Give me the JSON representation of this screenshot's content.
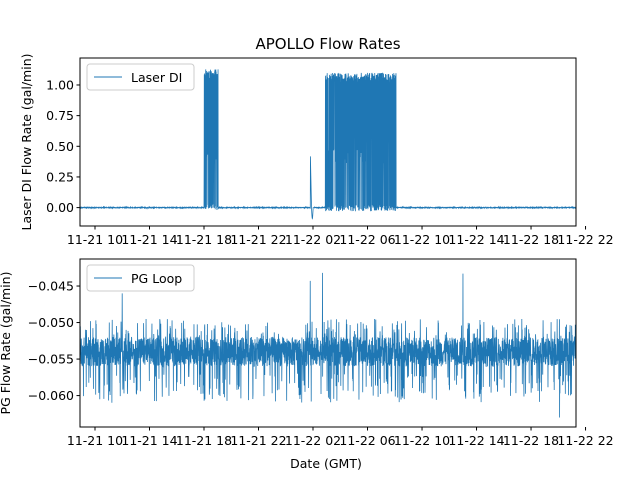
{
  "chart_data": {
    "type": "line",
    "title": "APOLLO Flow Rates",
    "xlabel": "Date (GMT)",
    "x_tick_labels": [
      "11-21 10",
      "11-21 14",
      "11-21 18",
      "11-21 22",
      "11-22 02",
      "11-22 06",
      "11-22 10",
      "11-22 14",
      "11-22 18",
      "11-22 22"
    ],
    "x_tick_hours": [
      -0.5,
      3.5,
      7.5,
      11.5,
      15.5,
      19.5,
      23.5,
      27.5,
      31.5,
      35.5
    ],
    "xlim_hours": [
      -1.6,
      34.8
    ],
    "x_origin": "11-21 10:30 GMT",
    "panels": [
      {
        "id": "top",
        "series_name": "Laser DI",
        "ylabel": "Laser DI Flow Rate (gal/min)",
        "ylim": [
          -0.15,
          1.22
        ],
        "yticks": [
          0.0,
          0.25,
          0.5,
          0.75,
          1.0
        ],
        "ytick_labels": [
          "0.00",
          "0.25",
          "0.50",
          "0.75",
          "1.00"
        ],
        "legend_loc": "upper left",
        "baseline": 0.0,
        "features": [
          {
            "start": 7.5,
            "end": 8.55,
            "low": -0.02,
            "high": 1.13,
            "note": "first burst"
          },
          {
            "start": 15.3,
            "end": 15.6,
            "low": -0.09,
            "high": 0.47,
            "note": "small spike and dip"
          },
          {
            "start": 16.4,
            "end": 21.6,
            "low": -0.03,
            "high": 1.1,
            "note": "main pumping period"
          }
        ]
      },
      {
        "id": "bottom",
        "series_name": "PG Loop",
        "ylabel": "PG Flow Rate (gal/min)",
        "ylim": [
          -0.0643,
          -0.0413
        ],
        "yticks": [
          -0.045,
          -0.05,
          -0.055,
          -0.06
        ],
        "ytick_labels": [
          "−0.045",
          "−0.050",
          "−0.055",
          "−0.060"
        ],
        "legend_loc": "upper left",
        "mean": -0.054,
        "noise_range": [
          -0.061,
          -0.0495
        ],
        "spikes": [
          {
            "hour": 1.5,
            "value": -0.046
          },
          {
            "hour": 15.3,
            "value": -0.0443
          },
          {
            "hour": 16.2,
            "value": -0.0432
          },
          {
            "hour": 26.5,
            "value": -0.0433
          },
          {
            "hour": 33.6,
            "value": -0.063
          }
        ]
      }
    ],
    "color": "#1f77b4"
  }
}
